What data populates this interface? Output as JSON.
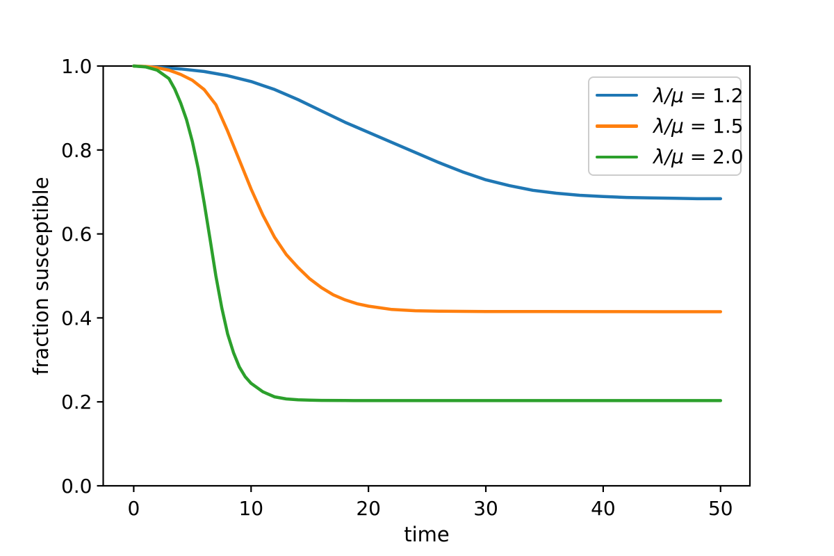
{
  "chart_data": {
    "type": "line",
    "title": "",
    "xlabel": "time",
    "ylabel": "fraction susceptible",
    "xlim": [
      -2.6,
      52.5
    ],
    "ylim": [
      0,
      1
    ],
    "grid": false,
    "legend_position": "upper right",
    "x_ticks": [
      "0",
      "10",
      "20",
      "30",
      "40",
      "50"
    ],
    "x_tick_values": [
      0,
      10,
      20,
      30,
      40,
      50
    ],
    "y_ticks": [
      "0.0",
      "0.2",
      "0.4",
      "0.6",
      "0.8",
      "1.0"
    ],
    "y_tick_values": [
      0,
      0.2,
      0.4,
      0.6,
      0.8,
      1.0
    ],
    "axis_color": "#000000",
    "series": [
      {
        "name": "λ/μ = 1.2",
        "id": "lambda-over-mu-1.2",
        "color": "#1f77b4",
        "final_value": 0.684,
        "points": [
          [
            0,
            1.0
          ],
          [
            2,
            0.997
          ],
          [
            4,
            0.993
          ],
          [
            6,
            0.987
          ],
          [
            8,
            0.977
          ],
          [
            10,
            0.963
          ],
          [
            12,
            0.944
          ],
          [
            14,
            0.92
          ],
          [
            16,
            0.893
          ],
          [
            18,
            0.866
          ],
          [
            20,
            0.842
          ],
          [
            22,
            0.818
          ],
          [
            24,
            0.794
          ],
          [
            26,
            0.77
          ],
          [
            28,
            0.748
          ],
          [
            30,
            0.729
          ],
          [
            32,
            0.715
          ],
          [
            34,
            0.704
          ],
          [
            36,
            0.697
          ],
          [
            38,
            0.692
          ],
          [
            40,
            0.689
          ],
          [
            42,
            0.687
          ],
          [
            44,
            0.686
          ],
          [
            46,
            0.685
          ],
          [
            48,
            0.684
          ],
          [
            50,
            0.684
          ]
        ]
      },
      {
        "name": "λ/μ = 1.5",
        "id": "lambda-over-mu-1.5",
        "color": "#ff7f0e",
        "final_value": 0.415,
        "points": [
          [
            0,
            1.0
          ],
          [
            1,
            0.999
          ],
          [
            2,
            0.996
          ],
          [
            3,
            0.99
          ],
          [
            4,
            0.98
          ],
          [
            5,
            0.966
          ],
          [
            6,
            0.944
          ],
          [
            7,
            0.908
          ],
          [
            8,
            0.845
          ],
          [
            9,
            0.776
          ],
          [
            10,
            0.707
          ],
          [
            11,
            0.645
          ],
          [
            12,
            0.592
          ],
          [
            13,
            0.551
          ],
          [
            14,
            0.52
          ],
          [
            15,
            0.493
          ],
          [
            16,
            0.472
          ],
          [
            17,
            0.455
          ],
          [
            18,
            0.443
          ],
          [
            19,
            0.434
          ],
          [
            20,
            0.428
          ],
          [
            22,
            0.42
          ],
          [
            24,
            0.417
          ],
          [
            26,
            0.416
          ],
          [
            28,
            0.4155
          ],
          [
            30,
            0.4152
          ],
          [
            35,
            0.415
          ],
          [
            40,
            0.4149
          ],
          [
            45,
            0.4148
          ],
          [
            50,
            0.4148
          ]
        ]
      },
      {
        "name": "λ/μ = 2.0",
        "id": "lambda-over-mu-2.0",
        "color": "#2ca02c",
        "final_value": 0.203,
        "points": [
          [
            0,
            1.0
          ],
          [
            1,
            0.998
          ],
          [
            2,
            0.99
          ],
          [
            3,
            0.97
          ],
          [
            3.5,
            0.945
          ],
          [
            4,
            0.912
          ],
          [
            4.5,
            0.872
          ],
          [
            5,
            0.82
          ],
          [
            5.5,
            0.755
          ],
          [
            6,
            0.675
          ],
          [
            6.5,
            0.588
          ],
          [
            7,
            0.5
          ],
          [
            7.5,
            0.424
          ],
          [
            8,
            0.362
          ],
          [
            8.5,
            0.317
          ],
          [
            9,
            0.283
          ],
          [
            9.5,
            0.26
          ],
          [
            10,
            0.244
          ],
          [
            11,
            0.224
          ],
          [
            12,
            0.212
          ],
          [
            13,
            0.207
          ],
          [
            14,
            0.205
          ],
          [
            15,
            0.204
          ],
          [
            16,
            0.2035
          ],
          [
            18,
            0.2031
          ],
          [
            20,
            0.203
          ],
          [
            25,
            0.2029
          ],
          [
            30,
            0.2029
          ],
          [
            40,
            0.2029
          ],
          [
            50,
            0.2029
          ]
        ]
      }
    ]
  }
}
